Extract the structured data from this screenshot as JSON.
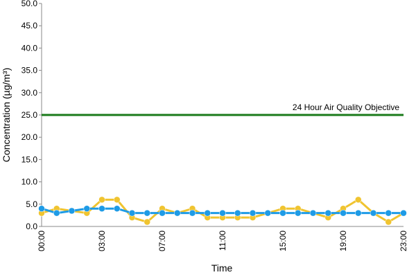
{
  "chart_data": {
    "type": "line",
    "x_label": "Time",
    "y_label": "Concentration (µg/m³)",
    "categories": [
      "00:00",
      null,
      null,
      null,
      "03:00",
      null,
      null,
      null,
      "07:00",
      null,
      null,
      null,
      "11:00",
      null,
      null,
      null,
      "15:00",
      null,
      null,
      null,
      "19:00",
      null,
      null,
      null,
      "23:00"
    ],
    "series": [
      {
        "color": "#f0c430",
        "values": [
          3,
          4,
          3.5,
          3,
          6,
          6,
          2,
          1,
          4,
          3,
          4,
          2,
          2,
          2,
          2,
          3,
          4,
          4,
          3,
          2,
          4,
          6,
          3,
          1,
          3
        ]
      },
      {
        "color": "#1e9be6",
        "values": [
          4,
          3,
          3.5,
          4,
          4,
          4,
          3,
          3,
          3,
          3,
          3,
          3,
          3,
          3,
          3,
          3,
          3,
          3,
          3,
          3,
          3,
          3,
          3,
          3,
          3
        ]
      }
    ],
    "reference_line": {
      "value": 25,
      "label": "24 Hour Air Quality Objective",
      "color": "#1a7a1a"
    },
    "ylim": [
      0,
      50
    ],
    "yticks": [
      {
        "value": 0,
        "label": "0.0"
      },
      {
        "value": 5,
        "label": "5.0"
      },
      {
        "value": 10,
        "label": "10.0"
      },
      {
        "value": 15,
        "label": "15.0"
      },
      {
        "value": 20,
        "label": "20.0"
      },
      {
        "value": 25,
        "label": "25.0"
      },
      {
        "value": 30,
        "label": "30.0"
      },
      {
        "value": 35,
        "label": "35.0"
      },
      {
        "value": 40,
        "label": "40.0"
      },
      {
        "value": 45,
        "label": "45.0"
      },
      {
        "value": 50,
        "label": "50.0"
      }
    ]
  }
}
